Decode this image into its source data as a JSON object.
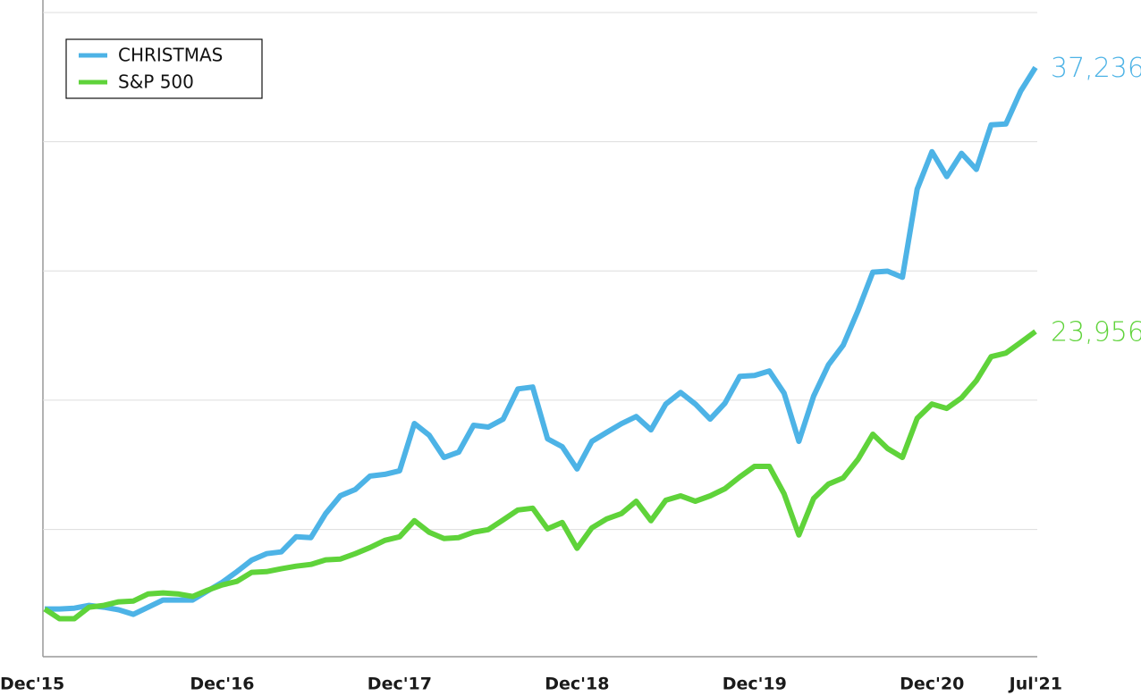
{
  "chart_data": {
    "type": "line",
    "categories": [
      "Dec'15",
      null,
      null,
      null,
      null,
      null,
      null,
      null,
      null,
      null,
      null,
      null,
      "Dec'16",
      null,
      null,
      null,
      null,
      null,
      null,
      null,
      null,
      null,
      null,
      null,
      "Dec'17",
      null,
      null,
      null,
      null,
      null,
      null,
      null,
      null,
      null,
      null,
      null,
      "Dec'18",
      null,
      null,
      null,
      null,
      null,
      null,
      null,
      null,
      null,
      null,
      null,
      "Dec'19",
      null,
      null,
      null,
      null,
      null,
      null,
      null,
      null,
      null,
      null,
      null,
      "Dec'20",
      null,
      null,
      null,
      null,
      null,
      null,
      "Jul'21"
    ],
    "series": [
      {
        "name": "CHRISTMAS",
        "color": "#4db3e6",
        "values": [
          10000,
          10000,
          10040,
          10180,
          10090,
          9960,
          9730,
          10090,
          10450,
          10450,
          10450,
          10900,
          11340,
          11880,
          12460,
          12780,
          12870,
          13630,
          13590,
          14800,
          15700,
          16010,
          16680,
          16770,
          16950,
          19330,
          18740,
          17620,
          17890,
          19240,
          19150,
          19550,
          21070,
          21160,
          18560,
          18160,
          17040,
          18430,
          18880,
          19320,
          19680,
          19010,
          20310,
          20890,
          20310,
          19550,
          20350,
          21700,
          21740,
          21970,
          20850,
          18430,
          20710,
          22280,
          23270,
          25020,
          26940,
          26990,
          26680,
          31120,
          33000,
          31750,
          32920,
          32110,
          34350,
          34390,
          36050,
          37236
        ],
        "value_labels": [
          null,
          null,
          null,
          null,
          null,
          null,
          null,
          null,
          null,
          null,
          null,
          null,
          null,
          null,
          null,
          null,
          null,
          null,
          null,
          null,
          null,
          null,
          null,
          null,
          null,
          null,
          null,
          null,
          null,
          null,
          null,
          null,
          null,
          null,
          null,
          null,
          null,
          null,
          null,
          null,
          null,
          null,
          null,
          null,
          null,
          null,
          null,
          null,
          null,
          null,
          null,
          null,
          null,
          null,
          null,
          null,
          null,
          null,
          null,
          null,
          null,
          null,
          null,
          null,
          null,
          null,
          null,
          "37,236"
        ]
      },
      {
        "name": "S&P 500",
        "color": "#5fd33a",
        "values": [
          10000,
          9510,
          9510,
          10090,
          10180,
          10360,
          10400,
          10760,
          10810,
          10760,
          10630,
          10940,
          11210,
          11390,
          11840,
          11880,
          12020,
          12150,
          12240,
          12470,
          12510,
          12780,
          13090,
          13450,
          13630,
          14440,
          13860,
          13540,
          13590,
          13860,
          13990,
          14480,
          14980,
          15070,
          14030,
          14350,
          13050,
          14080,
          14530,
          14800,
          15420,
          14440,
          15470,
          15690,
          15420,
          15690,
          16050,
          16640,
          17170,
          17170,
          15790,
          13720,
          15560,
          16280,
          16590,
          17530,
          18790,
          18070,
          17620,
          19590,
          20310,
          20090,
          20620,
          21480,
          22690,
          22870,
          23410,
          23956
        ],
        "value_labels": [
          null,
          null,
          null,
          null,
          null,
          null,
          null,
          null,
          null,
          null,
          null,
          null,
          null,
          null,
          null,
          null,
          null,
          null,
          null,
          null,
          null,
          null,
          null,
          null,
          null,
          null,
          null,
          null,
          null,
          null,
          null,
          null,
          null,
          null,
          null,
          null,
          null,
          null,
          null,
          null,
          null,
          null,
          null,
          null,
          null,
          null,
          null,
          null,
          null,
          null,
          null,
          null,
          null,
          null,
          null,
          null,
          null,
          null,
          null,
          null,
          null,
          null,
          null,
          null,
          null,
          null,
          null,
          "23,956"
        ]
      }
    ],
    "ylim": [
      7600,
      40000
    ],
    "yticks": [
      14000,
      20500,
      27000,
      33500,
      40000
    ],
    "grid": true,
    "legend": "upper-left"
  }
}
